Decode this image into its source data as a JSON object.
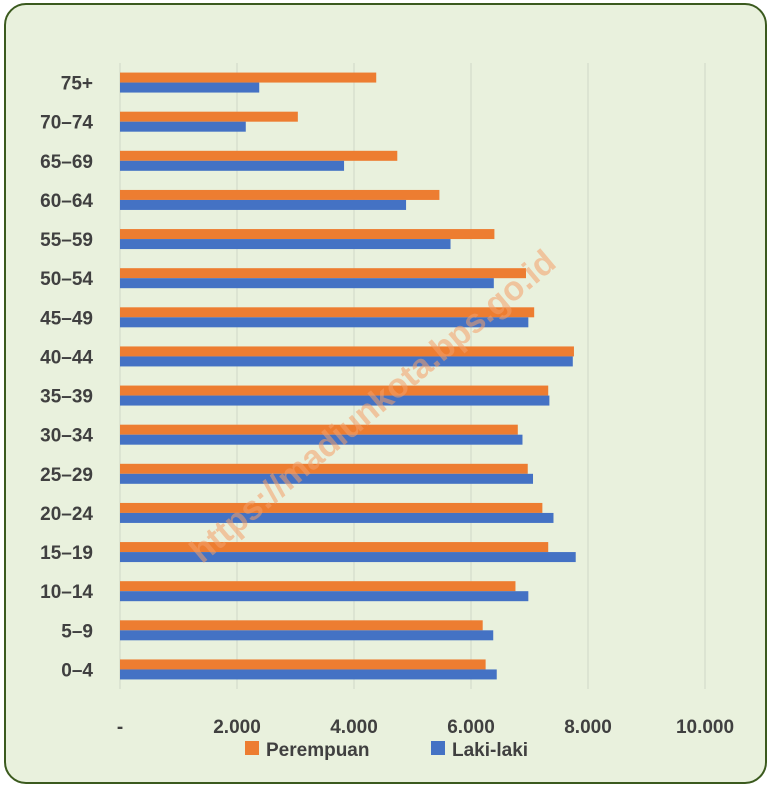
{
  "watermark": "https://madiunkota.bps.go.id",
  "colors": {
    "perempuan": "#ed7d31",
    "laki": "#4472c4",
    "frame_bg": "#e9f1dd",
    "frame_border": "#3b5a1e"
  },
  "chart_data": {
    "type": "bar",
    "orientation": "horizontal",
    "categories": [
      "75+",
      "70–74",
      "65–69",
      "60–64",
      "55–59",
      "50–54",
      "45–49",
      "40–44",
      "35–39",
      "30–34",
      "25–29",
      "20–24",
      "15–19",
      "10–14",
      "5–9",
      "0–4"
    ],
    "series": [
      {
        "name": "Perempuan",
        "values": [
          4380,
          3040,
          4740,
          5460,
          6400,
          6940,
          7080,
          7760,
          7320,
          6800,
          6970,
          7220,
          7320,
          6760,
          6200,
          6250
        ]
      },
      {
        "name": "Laki-laki",
        "values": [
          2380,
          2150,
          3830,
          4890,
          5650,
          6390,
          6980,
          7740,
          7340,
          6880,
          7060,
          7410,
          7790,
          6980,
          6380,
          6440
        ]
      }
    ],
    "xlim": [
      0,
      10000
    ],
    "xticks": [
      0,
      2000,
      4000,
      6000,
      8000,
      10000
    ],
    "xtick_labels": [
      "-",
      "2.000",
      "4.000",
      "6.000",
      "8.000",
      "10.000"
    ],
    "grid": true,
    "legend_position": "bottom"
  }
}
